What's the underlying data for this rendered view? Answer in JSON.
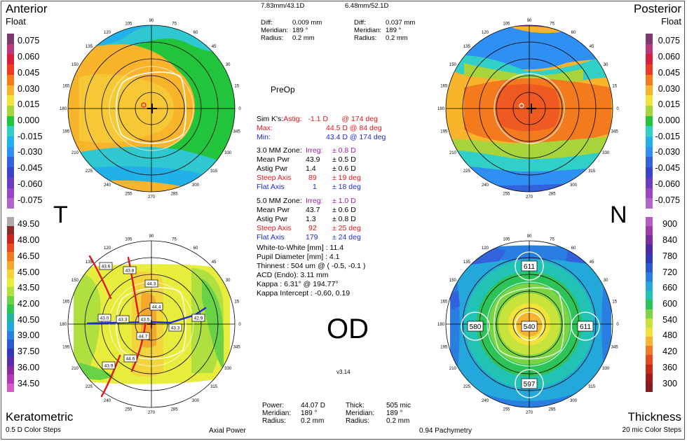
{
  "corners": {
    "top_left_title": "Anterior",
    "top_left_sub": "Float",
    "top_right_title": "Posterior",
    "top_right_sub": "Float",
    "bottom_left_title": "Keratometric",
    "bottom_left_sub": "0.5 D Color Steps",
    "bottom_left_mid": "Axial Power",
    "bottom_right_title": "Thickness",
    "bottom_right_sub": "20 mic Color Steps",
    "bottom_right_mid": "0.94 Pachymetry"
  },
  "side_letters": {
    "left": "T",
    "right": "N"
  },
  "eye_label": "OD",
  "preop_label": "PreOp",
  "version": "v3.14",
  "top_info": {
    "left_radius_header": "7.83mm/43.1D",
    "right_radius_header": "6.48mm/52.1D",
    "left": {
      "diff_label": "Diff:",
      "diff_value": "0.009 mm",
      "meridian_label": "Meridian:",
      "meridian_value": "189 °",
      "radius_label": "Radius:",
      "radius_value": "0.2 mm"
    },
    "right": {
      "diff_label": "Diff:",
      "diff_value": "0.037 mm",
      "meridian_label": "Meridian:",
      "meridian_value": "189 °",
      "radius_label": "Radius:",
      "radius_value": "0.2 mm"
    }
  },
  "simk": {
    "astig_prefix": "Sim K's:",
    "astig_label": "Astig:",
    "astig_value": "-1.1 D",
    "astig_axis": "@ 174 deg",
    "max_label": "Max:",
    "max_value": "44.5 D @ 84 deg",
    "min_label": "Min:",
    "min_value": "43.4 D @ 174 deg"
  },
  "zone3": {
    "zone_label": "3.0 MM Zone:",
    "irreg_label": "Irreg:",
    "irreg_value": "± 0.8 D",
    "mean_label": "Mean Pwr",
    "mean_value": "43.9",
    "mean_sd": "± 0.5 D",
    "astig_label": "Astig Pwr",
    "astig_value": "1.4",
    "astig_sd": "± 0.6 D",
    "steep_label": "Steep Axis",
    "steep_value": "89",
    "steep_sd": "± 19 deg",
    "flat_label": "Flat Axis",
    "flat_value": "1",
    "flat_sd": "± 18 deg"
  },
  "zone5": {
    "zone_label": "5.0 MM Zone:",
    "irreg_label": "Irreg:",
    "irreg_value": "± 1.0 D",
    "mean_label": "Mean Pwr",
    "mean_value": "43.7",
    "mean_sd": "± 0.6 D",
    "astig_label": "Astig Pwr",
    "astig_value": "1.3",
    "astig_sd": "± 0.8 D",
    "steep_label": "Steep Axis",
    "steep_value": "92",
    "steep_sd": "± 25 deg",
    "flat_label": "Flat Axis",
    "flat_value": "179",
    "flat_sd": "± 24 deg"
  },
  "measurements": {
    "wtw": "White-to-White [mm] : 11.4",
    "pupil": "Pupil Diameter [mm] :  4.1",
    "thinnest": "Thinnest : 504 um @ ( -0.5, -0.1 )",
    "acd": "ACD (Endo): 3.11 mm",
    "kappa": "Kappa : 6.31° @ 194.77°",
    "kappa_intercept": "Kappa Intercept : -0.60, 0.19"
  },
  "bottom_info": {
    "left": {
      "power_label": "Power:",
      "power_value": "44.07 D",
      "meridian_label": "Meridian:",
      "meridian_value": "189 °",
      "radius_label": "Radius:",
      "radius_value": "0.2 mm"
    },
    "right": {
      "thick_label": "Thick:",
      "thick_value": "505 mic",
      "meridian_label": "Meridian:",
      "meridian_value": "189 °",
      "radius_label": "Radius:",
      "radius_value": "0.2 mm"
    }
  },
  "float_scale": {
    "labels": [
      "0.075",
      "0.060",
      "0.045",
      "0.030",
      "0.015",
      "0.000",
      "-0.015",
      "-0.030",
      "-0.045",
      "-0.060",
      "-0.075"
    ],
    "colors": [
      "#7a3a6e",
      "#b83a78",
      "#d8203a",
      "#ee3a22",
      "#f47a1e",
      "#f8b42a",
      "#f3e23a",
      "#a6d43a",
      "#22c43c",
      "#30d0c8",
      "#22b0e8",
      "#2f8ff2",
      "#3262dc",
      "#3b44c8",
      "#6a3cc4",
      "#9a44c8",
      "#b066c8"
    ]
  },
  "kerato_scale": {
    "labels": [
      "49.50",
      "48.00",
      "46.50",
      "45.00",
      "43.50",
      "42.00",
      "40.50",
      "39.00",
      "37.50",
      "36.00",
      "34.50"
    ],
    "colors": [
      "#b0a8a8",
      "#8a2a2a",
      "#c8281e",
      "#e84a22",
      "#f07a24",
      "#f4a830",
      "#f4d43c",
      "#e8ec3c",
      "#b0e040",
      "#6ad246",
      "#2ec450",
      "#22b49c",
      "#24a8d8",
      "#2a7ee0",
      "#2c58d0",
      "#3438b8",
      "#5a2ea8",
      "#8a2c9e",
      "#b238b6",
      "#d45cc6"
    ]
  },
  "thick_scale": {
    "labels": [
      "900",
      "840",
      "780",
      "720",
      "660",
      "600",
      "540",
      "480",
      "420",
      "360",
      "300"
    ],
    "colors": [
      "#b45cc4",
      "#a03ca8",
      "#7a2ea0",
      "#4c2aa6",
      "#303ab8",
      "#2c58d4",
      "#2a7ee2",
      "#24a8dc",
      "#22c2b4",
      "#2cc458",
      "#7ad444",
      "#c8e43c",
      "#f2e23a",
      "#f6b430",
      "#f27c26",
      "#e8481e",
      "#c82a1a",
      "#a01a1a",
      "#8a1a22"
    ]
  },
  "anterior_map": {
    "compass_labels": [
      "120",
      "105",
      "90",
      "75",
      "60",
      "45",
      "30",
      "15",
      "0",
      "345",
      "330",
      "315",
      "300",
      "285",
      "270",
      "255",
      "240",
      "225",
      "210",
      "195",
      "180",
      "165",
      "150",
      "135"
    ]
  },
  "posterior_map": {
    "compass_labels": [
      "120",
      "105",
      "90",
      "75",
      "60",
      "45",
      "30",
      "15",
      "0",
      "345",
      "330",
      "315",
      "300",
      "285",
      "270",
      "255",
      "240",
      "225",
      "210",
      "195",
      "180",
      "165",
      "150",
      "135"
    ]
  },
  "kerato_map": {
    "compass_labels": [
      "120",
      "105",
      "90",
      "75",
      "60",
      "45",
      "30",
      "15",
      "0",
      "345",
      "330",
      "315",
      "300",
      "285",
      "270",
      "255",
      "240",
      "225",
      "210",
      "195",
      "180",
      "165",
      "150",
      "135"
    ],
    "values": [
      "43.6",
      "43.8",
      "44.3",
      "44.4",
      "43.0",
      "43.3",
      "43.5",
      "43.3",
      "42.9",
      "44.7",
      "44.6",
      "43.9"
    ]
  },
  "thick_map": {
    "compass_labels": [
      "120",
      "105",
      "90",
      "75",
      "60",
      "45",
      "30",
      "15",
      "0",
      "345",
      "330",
      "315",
      "300",
      "285",
      "270",
      "255",
      "240",
      "225",
      "210",
      "195",
      "180",
      "165",
      "150",
      "135"
    ],
    "values": [
      "611",
      "580",
      "540",
      "611",
      "597"
    ]
  }
}
